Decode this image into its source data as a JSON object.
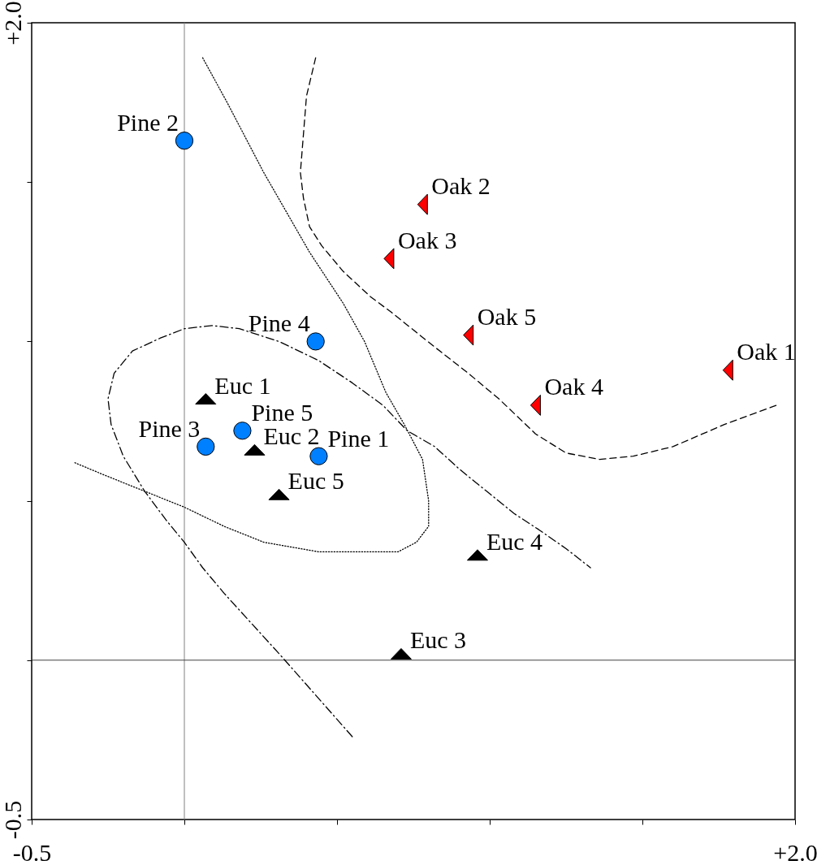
{
  "chart_data": {
    "type": "scatter",
    "xlim": [
      -0.5,
      2.0
    ],
    "ylim": [
      -0.5,
      2.0
    ],
    "xticks": [
      {
        "value": -0.5,
        "label": "-0.5"
      },
      {
        "value": 0,
        "label": null
      },
      {
        "value": 0.5,
        "label": null
      },
      {
        "value": 1,
        "label": null
      },
      {
        "value": 1.5,
        "label": null
      },
      {
        "value": 2,
        "label": "+2.0"
      }
    ],
    "yticks": [
      {
        "value": -0.5,
        "label": "-0.5"
      },
      {
        "value": 0,
        "label": null
      },
      {
        "value": 0.5,
        "label": null
      },
      {
        "value": 1,
        "label": null
      },
      {
        "value": 1.5,
        "label": null
      },
      {
        "value": 2,
        "label": "+2.0"
      }
    ],
    "ref_lines": [
      {
        "axis": "x",
        "value": 0,
        "color": "#808080"
      },
      {
        "axis": "y",
        "value": 0,
        "color": "#404040"
      }
    ],
    "series": [
      {
        "type": "line",
        "color": "#000000",
        "line_style": "dotted",
        "x": [
          0.06,
          0.14,
          0.26,
          0.41,
          0.52,
          0.59,
          0.66,
          0.72,
          0.78,
          0.8,
          0.8,
          0.76,
          0.7,
          0.65,
          0.54,
          0.44,
          0.26,
          0.13,
          0.0,
          -0.13,
          -0.26,
          -0.36
        ],
        "values": [
          1.89,
          1.75,
          1.53,
          1.28,
          1.12,
          1.0,
          0.84,
          0.74,
          0.63,
          0.5,
          0.42,
          0.37,
          0.34,
          0.34,
          0.34,
          0.34,
          0.37,
          0.42,
          0.48,
          0.53,
          0.58,
          0.62
        ]
      },
      {
        "type": "line",
        "color": "#000000",
        "line_style": "dashed",
        "x": [
          0.43,
          0.4,
          0.39,
          0.38,
          0.39,
          0.41,
          0.45,
          0.52,
          0.61,
          0.68,
          0.81,
          0.93,
          1.03,
          1.15,
          1.25,
          1.36,
          1.47,
          1.6,
          1.77,
          1.94
        ],
        "values": [
          1.89,
          1.77,
          1.65,
          1.53,
          1.45,
          1.36,
          1.3,
          1.22,
          1.14,
          1.09,
          0.99,
          0.9,
          0.82,
          0.71,
          0.65,
          0.63,
          0.64,
          0.67,
          0.74,
          0.8
        ]
      },
      {
        "type": "line",
        "color": "#000000",
        "line_style": "dashdot",
        "x": [
          0.55,
          0.32,
          0.13,
          0.06,
          0.0,
          -0.06,
          -0.13,
          -0.2,
          -0.24,
          -0.25,
          -0.23,
          -0.17,
          -0.08,
          0.0,
          0.09,
          0.18,
          0.31,
          0.44,
          0.55,
          0.65,
          0.73,
          0.82,
          0.9,
          0.99,
          1.08,
          1.16,
          1.25,
          1.33
        ],
        "values": [
          -0.24,
          0.01,
          0.21,
          0.29,
          0.37,
          0.44,
          0.53,
          0.64,
          0.74,
          0.82,
          0.9,
          0.97,
          1.01,
          1.04,
          1.05,
          1.04,
          1.0,
          0.94,
          0.87,
          0.8,
          0.72,
          0.67,
          0.6,
          0.53,
          0.46,
          0.41,
          0.35,
          0.29
        ]
      },
      {
        "type": "scatter",
        "color": "#0080ff",
        "marker": "circle",
        "x": [
          0.44,
          0.0,
          0.07,
          0.43,
          0.19
        ],
        "values": [
          0.64,
          1.63,
          0.67,
          1.0,
          0.72
        ]
      },
      {
        "type": "scatter",
        "color": "#ff0000",
        "marker": "triangle-left",
        "x": [
          1.78,
          0.78,
          0.67,
          1.15,
          0.93
        ],
        "values": [
          0.91,
          1.43,
          1.26,
          0.8,
          1.02
        ]
      },
      {
        "type": "scatter",
        "color": "#000000",
        "marker": "triangle",
        "x": [
          0.07,
          0.23,
          0.71,
          0.96,
          0.31
        ],
        "values": [
          0.82,
          0.66,
          0.02,
          0.33,
          0.52
        ]
      }
    ],
    "annotations": [
      {
        "text": "Pine 1",
        "x": 0.44,
        "y": 0.64
      },
      {
        "text": "Pine 2",
        "x": 0.0,
        "y": 1.63
      },
      {
        "text": "Pine 3",
        "x": 0.07,
        "y": 0.67
      },
      {
        "text": "Pine 4",
        "x": 0.43,
        "y": 1.0
      },
      {
        "text": "Pine 5",
        "x": 0.19,
        "y": 0.72
      },
      {
        "text": "Oak 1",
        "x": 1.78,
        "y": 0.91
      },
      {
        "text": "Oak 2",
        "x": 0.78,
        "y": 1.43
      },
      {
        "text": "Oak 3",
        "x": 0.67,
        "y": 1.26
      },
      {
        "text": "Oak 4",
        "x": 1.15,
        "y": 0.8
      },
      {
        "text": "Oak 5",
        "x": 0.93,
        "y": 1.02
      },
      {
        "text": "Euc 1",
        "x": 0.07,
        "y": 0.82
      },
      {
        "text": "Euc 2",
        "x": 0.23,
        "y": 0.66
      },
      {
        "text": "Euc 3",
        "x": 0.71,
        "y": 0.02
      },
      {
        "text": "Euc 4",
        "x": 0.96,
        "y": 0.33
      },
      {
        "text": "Euc 5",
        "x": 0.31,
        "y": 0.52
      }
    ]
  }
}
